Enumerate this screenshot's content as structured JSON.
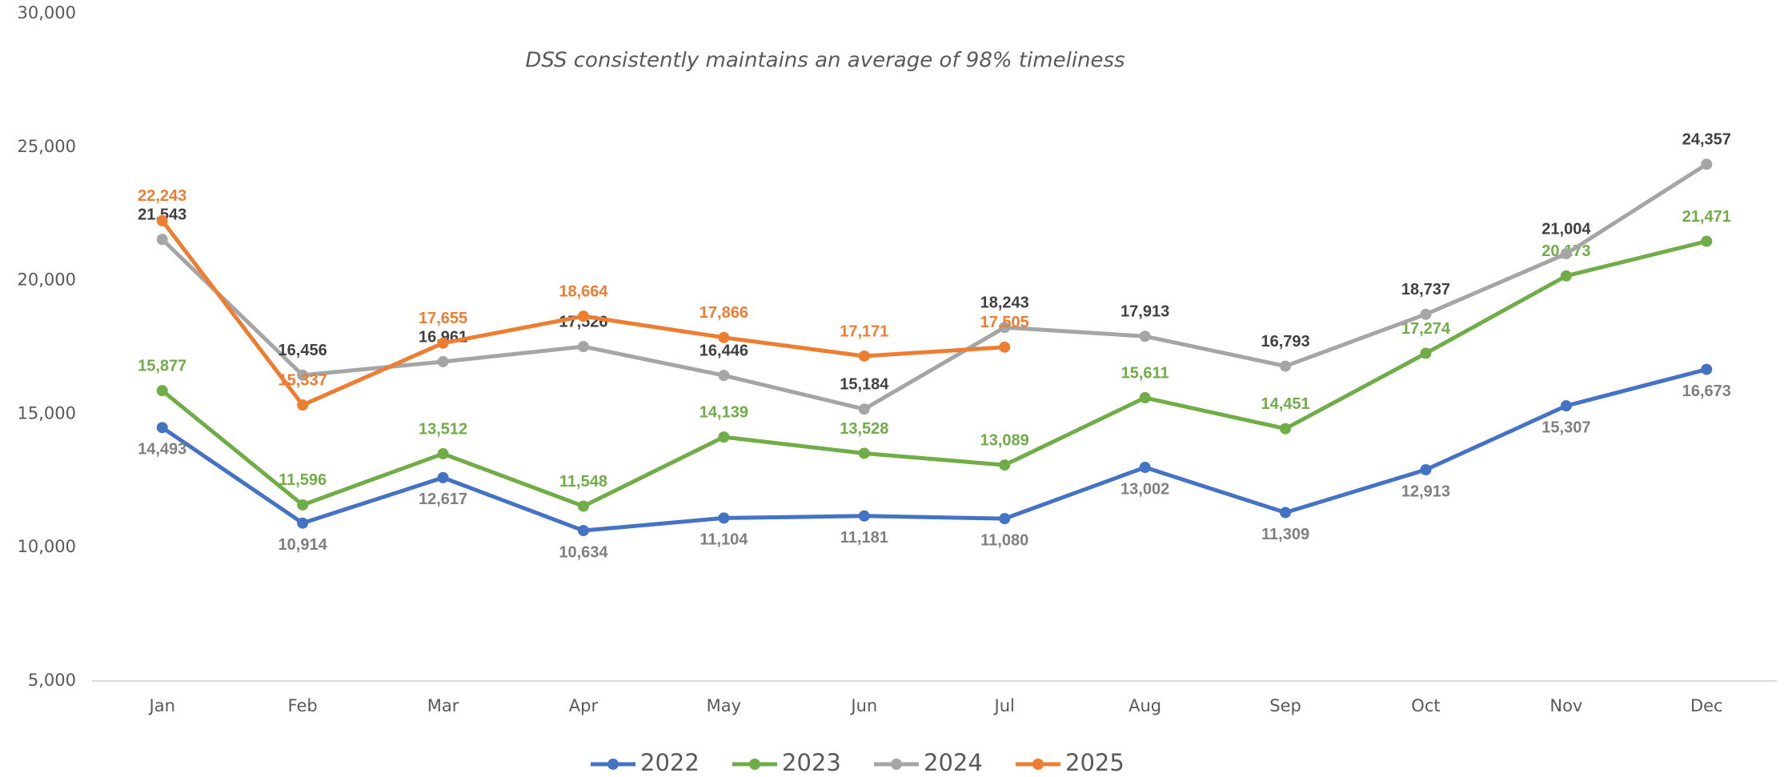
{
  "chart_data": {
    "type": "line",
    "title": "DSS consistently maintains an average of 98% timeliness",
    "categories": [
      "Jan",
      "Feb",
      "Mar",
      "Apr",
      "May",
      "Jun",
      "Jul",
      "Aug",
      "Sep",
      "Oct",
      "Nov",
      "Dec"
    ],
    "series": [
      {
        "name": "2022",
        "color": "#4472c4",
        "label_color": "#7f7f7f",
        "values": [
          14493,
          10914,
          12617,
          10634,
          11104,
          11181,
          11080,
          13002,
          11309,
          12913,
          15307,
          16673
        ],
        "value_labels": [
          "14,493",
          "10,914",
          "12,617",
          "10,634",
          "11,104",
          "11,181",
          "11,080",
          "13,002",
          "11,309",
          "12,913",
          "15,307",
          "16,673"
        ]
      },
      {
        "name": "2023",
        "color": "#70ad47",
        "label_color": "#70ad47",
        "values": [
          15877,
          11596,
          13512,
          11548,
          14139,
          13528,
          13089,
          15611,
          14451,
          17274,
          20173,
          21471
        ],
        "value_labels": [
          "15,877",
          "11,596",
          "13,512",
          "11,548",
          "14,139",
          "13,528",
          "13,089",
          "15,611",
          "14,451",
          "17,274",
          "20,173",
          "21,471"
        ]
      },
      {
        "name": "2024",
        "color": "#a5a5a5",
        "label_color": "#404040",
        "values": [
          21543,
          16456,
          16961,
          17526,
          16446,
          15184,
          18243,
          17913,
          16793,
          18737,
          21004,
          24357
        ],
        "value_labels": [
          "21,543",
          "16,456",
          "16,961",
          "17,526",
          "16,446",
          "15,184",
          "18,243",
          "17,913",
          "16,793",
          "18,737",
          "21,004",
          "24,357"
        ]
      },
      {
        "name": "2025",
        "color": "#ed7d31",
        "label_color": "#ed7d31",
        "values": [
          22243,
          15337,
          17655,
          18664,
          17866,
          17171,
          17505,
          null,
          null,
          null,
          null,
          null
        ],
        "value_labels": [
          "22,243",
          "15,337",
          "17,655",
          "18,664",
          "17,866",
          "17,171",
          "17,505",
          null,
          null,
          null,
          null,
          null
        ]
      }
    ],
    "ylim": [
      5000,
      30000
    ],
    "yticks": [
      {
        "value": 5000,
        "label": "5,000"
      },
      {
        "value": 10000,
        "label": "10,000"
      },
      {
        "value": 15000,
        "label": "15,000"
      },
      {
        "value": 20000,
        "label": "20,000"
      },
      {
        "value": 25000,
        "label": "25,000"
      },
      {
        "value": 30000,
        "label": "30,000"
      }
    ],
    "grid": false,
    "legend": "bottom"
  }
}
